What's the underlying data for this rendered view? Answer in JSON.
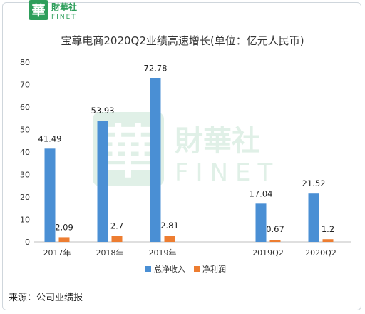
{
  "logo": {
    "glyph": "華",
    "name": "財華社",
    "latin": "FINET"
  },
  "watermark": {
    "glyph": "華",
    "name": "財華社",
    "latin": "FINET"
  },
  "colors": {
    "series1": "#4a8fd4",
    "series2": "#ed7d31",
    "axis": "#bfbfbf",
    "text": "#333333",
    "brand": "#2e9e5b"
  },
  "chart_data": {
    "type": "bar",
    "title": "宝尊电商2020Q2业绩高速增长(单位：亿元人民币)",
    "categories": [
      "2017年",
      "2018年",
      "2019年",
      "",
      "2019Q2",
      "2020Q2"
    ],
    "series": [
      {
        "name": "总净收入",
        "values": [
          41.49,
          53.93,
          72.78,
          null,
          17.04,
          21.52
        ],
        "labels": [
          "41.49",
          "53.93",
          "72.78",
          "",
          "17.04",
          "21.52"
        ]
      },
      {
        "name": "净利润",
        "values": [
          2.09,
          2.7,
          2.81,
          null,
          0.67,
          1.2
        ],
        "labels": [
          "2.09",
          "2.7",
          "2.81",
          "",
          "0.67",
          "1.2"
        ]
      }
    ],
    "ylim": [
      0,
      80
    ],
    "yticks": [
      "0",
      "10",
      "20",
      "30",
      "40",
      "50",
      "60",
      "70",
      "80"
    ],
    "legend": "bottom",
    "grid": false
  },
  "source": "来源：公司业绩报"
}
